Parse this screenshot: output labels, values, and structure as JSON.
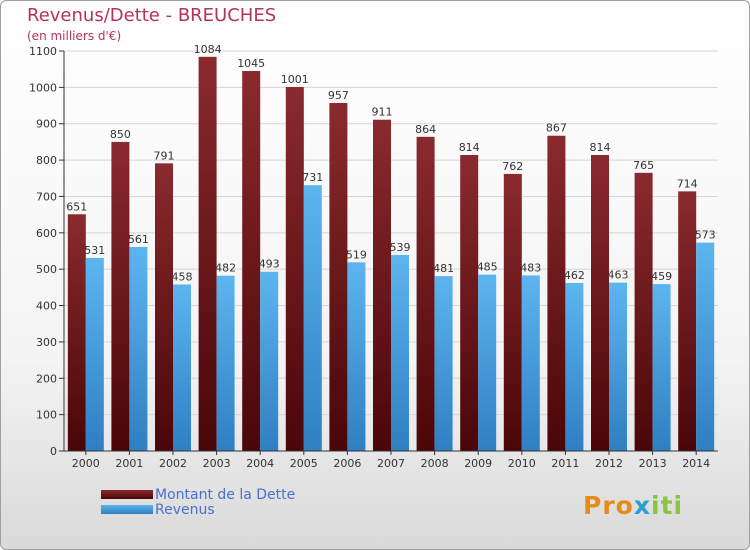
{
  "title": "Revenus/Dette - BREUCHES",
  "subtitle": "(en milliers d'€)",
  "logo": {
    "text": "Proxiti",
    "colors": [
      "#e88a1a",
      "#e88a1a",
      "#e88a1a",
      "#2b9fd8",
      "#8bc43f",
      "#8bc43f",
      "#8bc43f"
    ]
  },
  "colors": {
    "debt": "#7a1e22",
    "revenue": "#4ea9e6",
    "title": "#b5325e",
    "legend_text": "#4a6fd0"
  },
  "legend": {
    "position": "bottom-left"
  },
  "chart_data": {
    "type": "bar",
    "title": "Revenus/Dette - BREUCHES",
    "subtitle": "(en milliers d'€)",
    "categories": [
      "2000",
      "2001",
      "2002",
      "2003",
      "2004",
      "2005",
      "2006",
      "2007",
      "2008",
      "2009",
      "2010",
      "2011",
      "2012",
      "2013",
      "2014"
    ],
    "series": [
      {
        "name": "Montant de la Dette",
        "values": [
          651,
          850,
          791,
          1084,
          1045,
          1001,
          957,
          911,
          864,
          814,
          762,
          867,
          814,
          765,
          714
        ]
      },
      {
        "name": "Revenus",
        "values": [
          531,
          561,
          458,
          482,
          493,
          731,
          519,
          539,
          481,
          485,
          483,
          462,
          463,
          459,
          573
        ]
      }
    ],
    "ylim": [
      0,
      1100
    ],
    "yticks": [
      0,
      100,
      200,
      300,
      400,
      500,
      600,
      700,
      800,
      900,
      1000,
      1100
    ],
    "grid": true
  }
}
